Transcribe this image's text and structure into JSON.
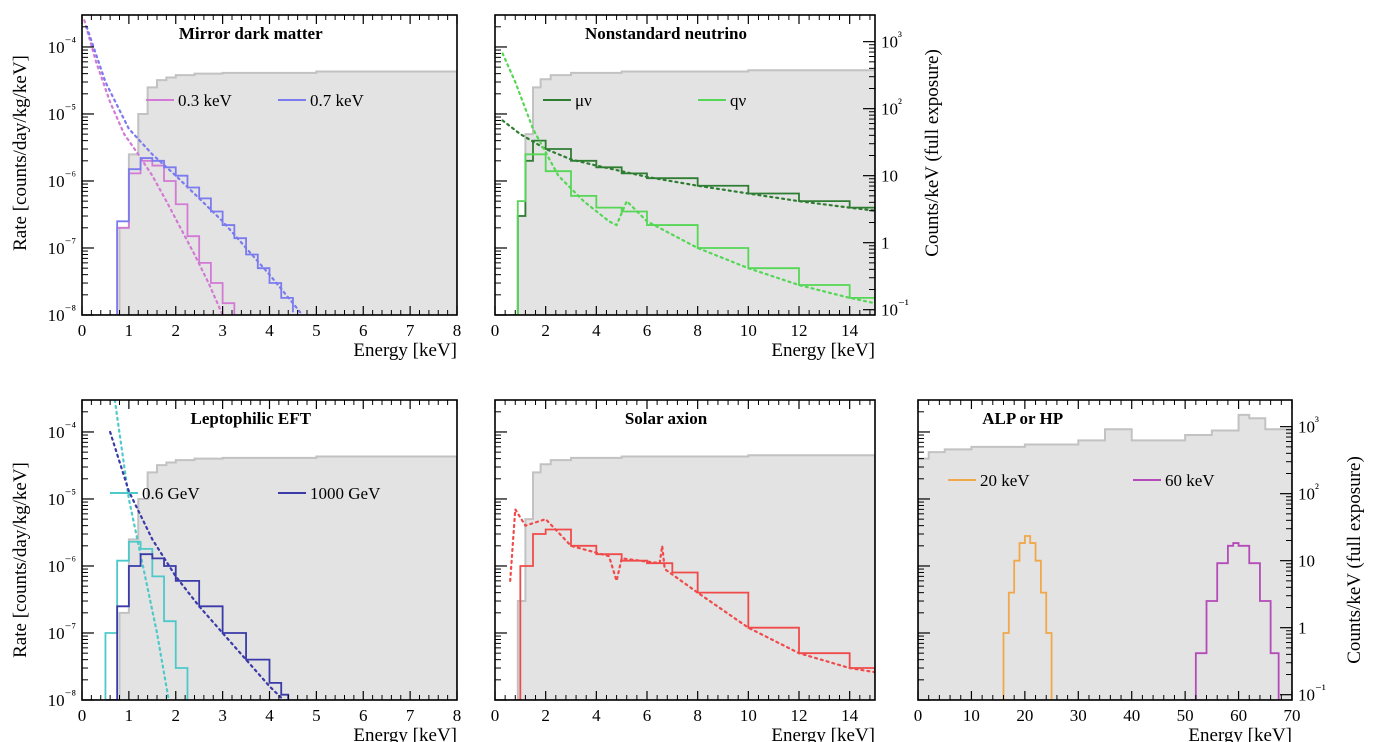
{
  "figure": {
    "ylabel_left": "Rate [counts/day/kg/keV]",
    "ylabel_right": "Counts/keV (full exposure)"
  },
  "chart_data": [
    {
      "type": "line",
      "title": "Mirror dark matter",
      "xlabel": "Energy [keV]",
      "ylabel": "Rate [counts/day/kg/keV]",
      "xlim": [
        0,
        8
      ],
      "ylim": [
        1e-08,
        0.0003
      ],
      "yscale": "log",
      "grid": false,
      "legend_position": "upper",
      "x_ticks": [
        "0",
        "1",
        "2",
        "3",
        "4",
        "5",
        "6",
        "7",
        "8"
      ],
      "y_ticks": [
        "10⁻⁸",
        "10⁻⁷",
        "10⁻⁶",
        "10⁻⁵",
        "10⁻⁴"
      ],
      "background": {
        "x": [
          0.0,
          0.6,
          0.8,
          1.0,
          1.2,
          1.4,
          1.6,
          1.8,
          2.0,
          2.4,
          3.0,
          5.0,
          8.0
        ],
        "y": [
          1e-08,
          1e-08,
          2e-07,
          2.5e-06,
          1e-05,
          2.5e-05,
          3.2e-05,
          3.5e-05,
          3.8e-05,
          4e-05,
          4.1e-05,
          4.3e-05,
          4.4e-05
        ]
      },
      "series": [
        {
          "name": "0.3 keV",
          "color": "#d27ad4",
          "measured": {
            "x": [
              0.75,
              1.0,
              1.25,
              1.5,
              1.75,
              2.0,
              2.25,
              2.5,
              2.75,
              3.0,
              3.25
            ],
            "y": [
              2e-07,
              1.3e-06,
              2e-06,
              1.7e-06,
              1e-06,
              4.5e-07,
              1.5e-07,
              6e-08,
              3e-08,
              1.5e-08,
              1e-08
            ]
          },
          "model": {
            "x": [
              0.05,
              0.3,
              0.6,
              0.9,
              1.2,
              1.5,
              1.8,
              2.1,
              2.4,
              2.7,
              3.0
            ],
            "y": [
              0.00025,
              6e-05,
              1.5e-05,
              5e-06,
              2.5e-06,
              1.2e-06,
              5e-07,
              2e-07,
              8e-08,
              3e-08,
              1e-08
            ]
          }
        },
        {
          "name": "0.7 keV",
          "color": "#7b7bf0",
          "measured": {
            "x": [
              0.75,
              1.0,
              1.25,
              1.5,
              1.75,
              2.0,
              2.25,
              2.5,
              2.75,
              3.0,
              3.25,
              3.5,
              3.75,
              4.0,
              4.25,
              4.5
            ],
            "y": [
              2.5e-07,
              1.5e-06,
              2.2e-06,
              2e-06,
              1.6e-06,
              1.2e-06,
              8e-07,
              5.5e-07,
              3.5e-07,
              2.2e-07,
              1.4e-07,
              8e-08,
              5e-08,
              3e-08,
              1.8e-08,
              1.1e-08
            ]
          },
          "model": {
            "x": [
              0.1,
              0.5,
              1.0,
              1.5,
              2.0,
              2.5,
              3.0,
              3.5,
              4.0,
              4.5,
              4.7
            ],
            "y": [
              0.0002,
              3e-05,
              6e-06,
              2.5e-06,
              1.2e-06,
              5.5e-07,
              2.5e-07,
              1e-07,
              4e-08,
              1.5e-08,
              1e-08
            ]
          }
        }
      ]
    },
    {
      "type": "line",
      "title": "Nonstandard neutrino",
      "xlabel": "Energy [keV]",
      "ylabel": "Counts/keV (full exposure)",
      "xlim": [
        0,
        15
      ],
      "ylim": [
        1e-08,
        0.0003
      ],
      "yscale": "log",
      "grid": false,
      "legend_position": "upper",
      "x_ticks": [
        "0",
        "2",
        "4",
        "6",
        "8",
        "10",
        "12",
        "14"
      ],
      "y_ticks_right": [
        "10⁻¹",
        "1",
        "10",
        "10²",
        "10³"
      ],
      "background": {
        "x": [
          0.0,
          0.6,
          0.9,
          1.2,
          1.5,
          1.8,
          2.2,
          3.0,
          5.0,
          10.0,
          15.0
        ],
        "y": [
          1e-08,
          1e-08,
          3e-07,
          5e-06,
          2.5e-05,
          3.3e-05,
          3.8e-05,
          4.1e-05,
          4.3e-05,
          4.5e-05,
          4.6e-05
        ]
      },
      "series": [
        {
          "name": "μν",
          "color": "#2e7d32",
          "measured": {
            "x": [
              0.6,
              0.9,
              1.2,
              1.5,
              2.0,
              3.0,
              4.0,
              5.0,
              6.0,
              8.0,
              10.0,
              12.0,
              14.0,
              15.0
            ],
            "y": [
              1e-08,
              3e-07,
              2e-06,
              4e-06,
              3e-06,
              2e-06,
              1.6e-06,
              1.3e-06,
              1.1e-06,
              8.5e-07,
              6.5e-07,
              5e-07,
              4e-07,
              3.8e-07
            ]
          },
          "model": {
            "x": [
              0.3,
              1.0,
              2.0,
              3.0,
              4.0,
              6.0,
              8.0,
              10.0,
              12.0,
              14.0,
              15.0
            ],
            "y": [
              8e-06,
              5e-06,
              3e-06,
              2.1e-06,
              1.7e-06,
              1.15e-06,
              8.5e-07,
              6.5e-07,
              5e-07,
              4e-07,
              3.6e-07
            ]
          }
        },
        {
          "name": "qν",
          "color": "#55d655",
          "measured": {
            "x": [
              0.6,
              0.9,
              1.2,
              1.5,
              2.0,
              3.0,
              4.0,
              5.0,
              6.0,
              8.0,
              10.0,
              12.0,
              14.0,
              15.0
            ],
            "y": [
              1e-08,
              5e-07,
              2.5e-06,
              2.5e-06,
              1.4e-06,
              6e-07,
              4e-07,
              3.5e-07,
              2.2e-07,
              1e-07,
              5e-08,
              2.8e-08,
              1.8e-08,
              1.5e-08
            ]
          },
          "model": {
            "x": [
              0.3,
              0.8,
              1.5,
              2.5,
              3.5,
              4.5,
              4.8,
              5.2,
              6.0,
              8.0,
              10.0,
              12.0,
              14.0,
              15.0
            ],
            "y": [
              8e-05,
              3e-05,
              6e-06,
              1.2e-06,
              5e-07,
              2.5e-07,
              2.2e-07,
              5e-07,
              2.5e-07,
              1e-07,
              5e-08,
              2.8e-08,
              1.8e-08,
              1.5e-08
            ]
          }
        }
      ]
    },
    {
      "type": "line",
      "title": "Leptophilic EFT",
      "xlabel": "Energy [keV]",
      "ylabel": "Rate [counts/day/kg/keV]",
      "xlim": [
        0,
        8
      ],
      "ylim": [
        1e-08,
        0.0003
      ],
      "yscale": "log",
      "grid": false,
      "legend_position": "upper",
      "x_ticks": [
        "0",
        "1",
        "2",
        "3",
        "4",
        "5",
        "6",
        "7",
        "8"
      ],
      "y_ticks": [
        "10⁻⁸",
        "10⁻⁷",
        "10⁻⁶",
        "10⁻⁵",
        "10⁻⁴"
      ],
      "background": {
        "x": [
          0.0,
          0.6,
          0.8,
          1.0,
          1.2,
          1.4,
          1.6,
          1.8,
          2.0,
          2.4,
          3.0,
          5.0,
          8.0
        ],
        "y": [
          1e-08,
          1e-08,
          2e-07,
          2.5e-06,
          1e-05,
          2.5e-05,
          3.2e-05,
          3.5e-05,
          3.8e-05,
          4e-05,
          4.1e-05,
          4.3e-05,
          4.4e-05
        ]
      },
      "series": [
        {
          "name": "0.6 GeV",
          "color": "#4ec9c9",
          "measured": {
            "x": [
              0.5,
              0.75,
              1.0,
              1.25,
              1.5,
              1.75,
              2.0,
              2.25
            ],
            "y": [
              1e-07,
              1.2e-06,
              2.3e-06,
              1.8e-06,
              7e-07,
              1.5e-07,
              3e-08,
              1e-08
            ]
          },
          "model": {
            "x": [
              0.7,
              1.0,
              1.3,
              1.6,
              1.85
            ],
            "y": [
              0.0003,
              1e-05,
              1e-06,
              1e-07,
              1e-08
            ]
          }
        },
        {
          "name": "1000 GeV",
          "color": "#3a3aa8",
          "measured": {
            "x": [
              0.5,
              0.75,
              1.0,
              1.25,
              1.5,
              1.75,
              2.0,
              2.5,
              3.0,
              3.5,
              4.0,
              4.25,
              4.4
            ],
            "y": [
              1e-08,
              2.5e-07,
              1e-06,
              1.5e-06,
              1.3e-06,
              1e-06,
              6e-07,
              2.5e-07,
              1e-07,
              4e-08,
              1.8e-08,
              1.2e-08,
              1e-08
            ]
          },
          "model": {
            "x": [
              0.6,
              1.0,
              1.5,
              2.0,
              2.5,
              3.0,
              3.5,
              4.0,
              4.3
            ],
            "y": [
              0.0001,
              1.3e-05,
              2.5e-06,
              7e-07,
              2.5e-07,
              1e-07,
              4e-08,
              1.6e-08,
              1e-08
            ]
          }
        }
      ]
    },
    {
      "type": "line",
      "title": "Solar axion",
      "xlabel": "Energy [keV]",
      "ylabel": "Rate [counts/day/kg/keV]",
      "xlim": [
        0,
        15
      ],
      "ylim": [
        1e-08,
        0.0003
      ],
      "yscale": "log",
      "grid": false,
      "legend_position": "none",
      "x_ticks": [
        "0",
        "2",
        "4",
        "6",
        "8",
        "10",
        "12",
        "14"
      ],
      "background": {
        "x": [
          0.0,
          0.6,
          0.9,
          1.2,
          1.5,
          1.8,
          2.2,
          3.0,
          5.0,
          10.0,
          15.0
        ],
        "y": [
          1e-08,
          1e-08,
          3e-07,
          5e-06,
          2.5e-05,
          3.3e-05,
          3.8e-05,
          4.1e-05,
          4.3e-05,
          4.5e-05,
          4.6e-05
        ]
      },
      "series": [
        {
          "color": "#f04a4a",
          "measured": {
            "x": [
              0.8,
              1.0,
              1.5,
              2.0,
              3.0,
              4.0,
              5.0,
              6.0,
              7.0,
              8.0,
              10.0,
              12.0,
              14.0,
              15.0
            ],
            "y": [
              1e-08,
              1e-06,
              3e-06,
              3.5e-06,
              2e-06,
              1.5e-06,
              1.2e-06,
              1.1e-06,
              8e-07,
              4e-07,
              1.2e-07,
              5e-08,
              3e-08,
              2.6e-08
            ]
          },
          "model": {
            "x": [
              0.6,
              0.8,
              1.2,
              2.0,
              3.0,
              4.5,
              4.8,
              5.0,
              6.5,
              6.6,
              6.7,
              8.0,
              10.0,
              12.0,
              14.0,
              15.0
            ],
            "y": [
              6e-07,
              7e-06,
              4e-06,
              5e-06,
              2e-06,
              1.4e-06,
              6e-07,
              1.3e-06,
              1.1e-06,
              2e-06,
              9e-07,
              4e-07,
              1.2e-07,
              5e-08,
              3e-08,
              2.6e-08
            ]
          }
        }
      ]
    },
    {
      "type": "line",
      "title": "ALP or HP",
      "xlabel": "Energy [keV]",
      "ylabel": "Counts/keV (full exposure)",
      "xlim": [
        0,
        70
      ],
      "ylim": [
        1e-08,
        0.0003
      ],
      "yscale": "log",
      "grid": false,
      "legend_position": "upper",
      "x_ticks": [
        "0",
        "10",
        "20",
        "30",
        "40",
        "50",
        "60",
        "70"
      ],
      "y_ticks_right": [
        "10⁻¹",
        "1",
        "10",
        "10²",
        "10³"
      ],
      "background": {
        "x": [
          0.0,
          2.0,
          5.0,
          10.0,
          20.0,
          30.0,
          35.0,
          40.0,
          50.0,
          55.0,
          60.0,
          62.0,
          65.0,
          70.0
        ],
        "y": [
          4e-05,
          5e-05,
          5.5e-05,
          6e-05,
          6.5e-05,
          7.5e-05,
          0.00011,
          7.5e-05,
          9e-05,
          0.000105,
          0.00018,
          0.00016,
          0.00011,
          9e-05
        ]
      },
      "series": [
        {
          "name": "20 keV",
          "color": "#f0a84a",
          "measured": {
            "x": [
              15.0,
              16.0,
              17.0,
              18.0,
              19.0,
              20.0,
              21.0,
              22.0,
              23.0,
              24.0,
              25.0
            ],
            "y": [
              1e-08,
              1e-07,
              4e-07,
              1.2e-06,
              2.2e-06,
              2.8e-06,
              2.2e-06,
              1.2e-06,
              4e-07,
              1e-07,
              1e-08
            ]
          }
        },
        {
          "name": "60 keV",
          "color": "#b54ab8",
          "measured": {
            "x": [
              51.0,
              52.0,
              54.0,
              56.0,
              58.0,
              59.0,
              60.0,
              62.0,
              64.0,
              66.0,
              67.5
            ],
            "y": [
              1e-08,
              5e-08,
              3e-07,
              1.1e-06,
              2e-06,
              2.2e-06,
              2e-06,
              1.1e-06,
              3e-07,
              5e-08,
              1e-08
            ]
          }
        }
      ]
    }
  ]
}
